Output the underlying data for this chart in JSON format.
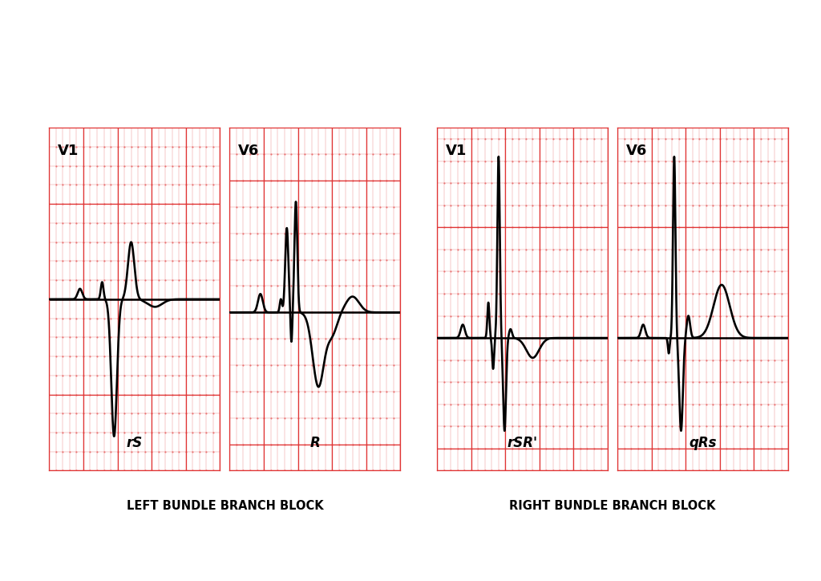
{
  "background": "#ffffff",
  "grid_bg_color": "#ffffff",
  "grid_major_color": "#e8353535",
  "grid_line_color": "#e03535",
  "grid_dot_color": "#f08080",
  "ecg_color": "#000000",
  "baseline_color": "#000000",
  "figure_width": 10.24,
  "figure_height": 7.24,
  "panels": [
    {
      "label": "V1",
      "sublabel": "rS",
      "type": "lbbb_v1"
    },
    {
      "label": "V6",
      "sublabel": "R",
      "type": "lbbb_v6"
    },
    {
      "label": "V1",
      "sublabel": "rSR'",
      "type": "rbbb_v1"
    },
    {
      "label": "V6",
      "sublabel": "qRs",
      "type": "rbbb_v6"
    }
  ],
  "left_title": "LEFT BUNDLE BRANCH BLOCK",
  "right_title": "RIGHT BUNDLE BRANCH BLOCK",
  "title_fontsize": 10.5,
  "label_fontsize": 13,
  "sublabel_fontsize": 12
}
